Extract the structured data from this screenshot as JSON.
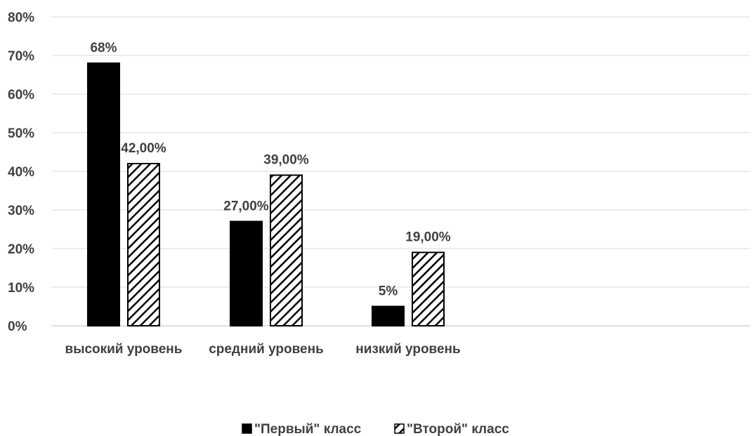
{
  "chart_data": {
    "type": "bar",
    "title": "",
    "xlabel": "",
    "ylabel": "",
    "ylim": [
      0,
      80
    ],
    "yticks": [
      "0%",
      "10%",
      "20%",
      "30%",
      "40%",
      "50%",
      "60%",
      "70%",
      "80%"
    ],
    "grid": true,
    "legend_position": "bottom",
    "categories": [
      "высокий уровень",
      "средний уровень",
      "низкий уровень"
    ],
    "series": [
      {
        "name": "\"Первый\" класс",
        "values": [
          68,
          27,
          5
        ],
        "labels": [
          "68%",
          "27,00%",
          "5%"
        ],
        "fill": "solid",
        "color": "#000000"
      },
      {
        "name": "\"Второй\" класс",
        "values": [
          42,
          39,
          19
        ],
        "labels": [
          "42,00%",
          "39,00%",
          "19,00%"
        ],
        "fill": "diagonal-hatch",
        "color": "#000000"
      }
    ]
  }
}
